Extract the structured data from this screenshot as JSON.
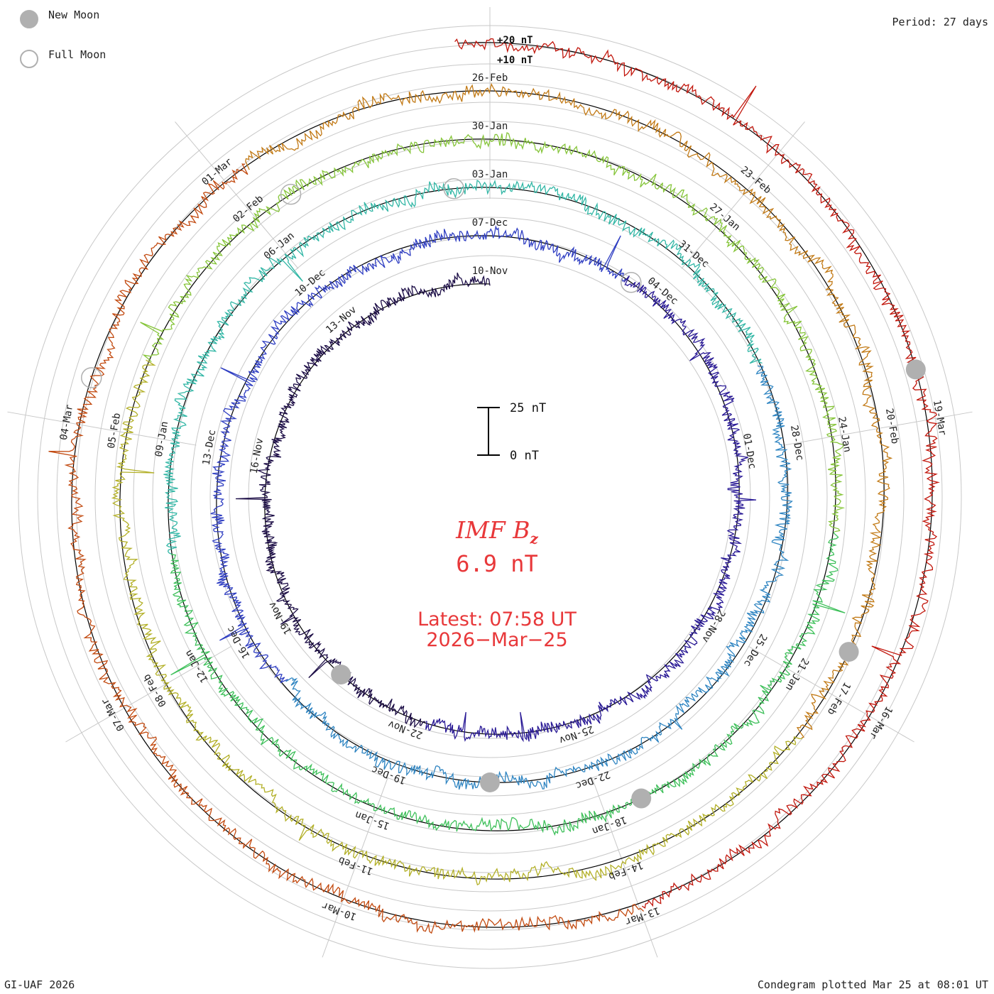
{
  "header": {
    "legend_new_moon": "New Moon",
    "legend_full_moon": "Full Moon",
    "period": "Period: 27 days"
  },
  "footer": {
    "credit": "GI-UAF 2026",
    "plotted": "Condegram plotted Mar 25 at 08:01 UT"
  },
  "center": {
    "title_prefix": "IMF B",
    "title_sub": "z",
    "value": "6.9 nT",
    "latest_line1": "Latest: 07:58 UT",
    "latest_line2": "2026−Mar−25"
  },
  "scale_bar": {
    "top_label": "25 nT",
    "bottom_label": "0 nT",
    "value": 25
  },
  "outer_scale": {
    "labels": [
      "+20 nT",
      "+10 nT"
    ]
  },
  "colors": {
    "rings": [
      "#1c0d46",
      "#2a1a96",
      "#2f3ec2",
      "#2f85c2",
      "#33b7a6",
      "#3ec05a",
      "#86c53a",
      "#b3b028",
      "#c27a16",
      "#c24a10",
      "#c2180e"
    ],
    "moon": "#b0b0b0",
    "grid": "#c8c8c8",
    "text_red": "#e8383a"
  },
  "chart_data": {
    "type": "polar-line",
    "title": "IMF Bz",
    "period_days": 27,
    "units": "nT",
    "rings": [
      {
        "start": "2025-11-10",
        "day_labels": [
          "10-Nov",
          "13-Nov",
          "16-Nov",
          "19-Nov",
          "22-Nov",
          "25-Nov",
          "28-Nov",
          "01-Dec",
          "04-Dec"
        ]
      },
      {
        "start": "2025-12-07",
        "day_labels": [
          "07-Dec",
          "10-Dec",
          "13-Dec",
          "16-Dec",
          "19-Dec",
          "22-Dec",
          "25-Dec",
          "28-Dec",
          "31-Dec"
        ]
      },
      {
        "start": "2026-01-03",
        "day_labels": [
          "03-Jan",
          "06-Jan",
          "09-Jan",
          "12-Jan",
          "15-Jan",
          "18-Jan",
          "21-Jan",
          "24-Jan",
          "27-Jan"
        ]
      },
      {
        "start": "2026-01-30",
        "day_labels": [
          "30-Jan",
          "02-Feb",
          "05-Feb",
          "08-Feb",
          "11-Feb",
          "14-Feb",
          "17-Feb",
          "20-Feb",
          "23-Feb"
        ]
      },
      {
        "start": "2026-02-26",
        "day_labels": [
          "26-Feb",
          "01-Mar",
          "04-Mar",
          "07-Mar",
          "10-Mar",
          "13-Mar",
          "16-Mar",
          "19-Mar"
        ]
      }
    ],
    "new_moons": [
      "2025-11-20",
      "2025-12-20",
      "2026-01-18",
      "2026-02-17",
      "2026-03-19"
    ],
    "full_moons": [
      "2025-12-04",
      "2026-01-03",
      "2026-02-01",
      "2026-03-03"
    ],
    "latest_value_nT": 6.9,
    "latest_time": "2026-03-25 07:58 UT"
  }
}
